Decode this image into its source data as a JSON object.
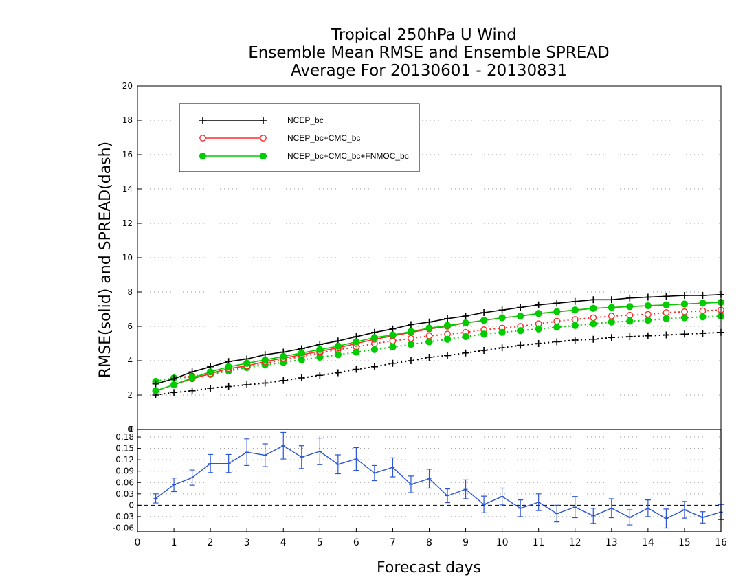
{
  "title": [
    "Tropical 250hPa U Wind",
    "Ensemble Mean RMSE and Ensemble SPREAD",
    "Average For 20130601 - 20130831"
  ],
  "xlabel": "Forecast days",
  "ylabel": "RMSE(solid) and SPREAD(dash)",
  "colors": {
    "ncep": "#000000",
    "cmc": "#ff2a2a",
    "fnmoc": "#00cc00",
    "diff": "#2b55d6",
    "grid": "#9a9a9a"
  },
  "chart_data": [
    {
      "type": "line",
      "xlim": [
        0,
        16
      ],
      "ylim": [
        0,
        20
      ],
      "xticks": [
        "0",
        "1",
        "2",
        "3",
        "4",
        "5",
        "6",
        "7",
        "8",
        "9",
        "10",
        "11",
        "12",
        "13",
        "14",
        "15",
        "16"
      ],
      "yticks": [
        "0",
        "2",
        "4",
        "6",
        "8",
        "10",
        "12",
        "14",
        "16",
        "18",
        "20"
      ],
      "grid": true,
      "legend_position": "top-left",
      "x": [
        0.5,
        1,
        1.5,
        2,
        2.5,
        3,
        3.5,
        4,
        4.5,
        5,
        5.5,
        6,
        6.5,
        7,
        7.5,
        8,
        8.5,
        9,
        9.5,
        10,
        10.5,
        11,
        11.5,
        12,
        12.5,
        13,
        13.5,
        14,
        14.5,
        15,
        15.5,
        16
      ],
      "series": [
        {
          "name": "NCEP_bc",
          "metric": "RMSE",
          "line_style": "solid",
          "marker": "plus",
          "values": [
            2.65,
            2.95,
            3.35,
            3.65,
            3.95,
            4.1,
            4.35,
            4.5,
            4.7,
            4.95,
            5.15,
            5.4,
            5.65,
            5.85,
            6.1,
            6.25,
            6.45,
            6.6,
            6.8,
            6.95,
            7.1,
            7.25,
            7.35,
            7.45,
            7.55,
            7.55,
            7.65,
            7.7,
            7.75,
            7.8,
            7.8,
            7.85
          ]
        },
        {
          "name": "NCEP_bc",
          "metric": "SPREAD",
          "line_style": "dotted",
          "marker": "plus",
          "values": [
            2.0,
            2.15,
            2.25,
            2.4,
            2.5,
            2.6,
            2.7,
            2.85,
            3.0,
            3.15,
            3.3,
            3.5,
            3.65,
            3.85,
            4.0,
            4.2,
            4.3,
            4.45,
            4.6,
            4.75,
            4.9,
            5.0,
            5.1,
            5.2,
            5.25,
            5.35,
            5.4,
            5.45,
            5.5,
            5.55,
            5.6,
            5.65
          ]
        },
        {
          "name": "NCEP_bc+CMC_bc",
          "metric": "RMSE",
          "line_style": "solid",
          "marker": "open-circle",
          "values": [
            2.25,
            2.6,
            2.95,
            3.25,
            3.55,
            3.7,
            3.95,
            4.15,
            4.35,
            4.55,
            4.75,
            5.0,
            5.25,
            5.45,
            5.65,
            5.85,
            6.0,
            6.2,
            6.35,
            6.5,
            6.6,
            6.75,
            6.85,
            6.95,
            7.05,
            7.1,
            7.15,
            7.2,
            7.25,
            7.3,
            7.35,
            7.4
          ]
        },
        {
          "name": "NCEP_bc+CMC_bc",
          "metric": "SPREAD",
          "line_style": "dotted",
          "marker": "open-circle",
          "values": [
            2.8,
            3.0,
            3.1,
            3.25,
            3.45,
            3.65,
            3.85,
            4.05,
            4.25,
            4.45,
            4.65,
            4.8,
            5.0,
            5.15,
            5.3,
            5.45,
            5.55,
            5.65,
            5.8,
            5.9,
            6.0,
            6.15,
            6.3,
            6.4,
            6.5,
            6.6,
            6.65,
            6.7,
            6.8,
            6.85,
            6.9,
            6.95
          ]
        },
        {
          "name": "NCEP_bc+CMC_bc+FNMOC_bc",
          "metric": "RMSE",
          "line_style": "solid",
          "marker": "filled-circle",
          "values": [
            2.25,
            2.6,
            3.0,
            3.35,
            3.65,
            3.85,
            4.05,
            4.25,
            4.45,
            4.65,
            4.85,
            5.1,
            5.35,
            5.5,
            5.7,
            5.9,
            6.05,
            6.2,
            6.35,
            6.5,
            6.6,
            6.75,
            6.85,
            6.95,
            7.05,
            7.1,
            7.15,
            7.2,
            7.25,
            7.3,
            7.35,
            7.4
          ]
        },
        {
          "name": "NCEP_bc+CMC_bc+FNMOC_bc",
          "metric": "SPREAD",
          "line_style": "dotted",
          "marker": "filled-circle",
          "values": [
            2.8,
            3.0,
            3.05,
            3.2,
            3.4,
            3.6,
            3.75,
            3.9,
            4.05,
            4.2,
            4.35,
            4.5,
            4.65,
            4.8,
            4.95,
            5.1,
            5.25,
            5.4,
            5.55,
            5.65,
            5.75,
            5.85,
            5.95,
            6.05,
            6.15,
            6.25,
            6.3,
            6.35,
            6.45,
            6.5,
            6.55,
            6.6
          ]
        }
      ]
    },
    {
      "type": "line",
      "xlim": [
        0,
        16
      ],
      "ylim": [
        -0.07,
        0.2
      ],
      "xticks": [
        "0",
        "1",
        "2",
        "3",
        "4",
        "5",
        "6",
        "7",
        "8",
        "9",
        "10",
        "11",
        "12",
        "13",
        "14",
        "15",
        "16"
      ],
      "yticks": [
        "-0.06",
        "-0.03",
        "0",
        "0.03",
        "0.06",
        "0.09",
        "0.12",
        "0.15",
        "0.18"
      ],
      "ytick_values": [
        -0.06,
        -0.03,
        0,
        0.03,
        0.06,
        0.09,
        0.12,
        0.15,
        0.18
      ],
      "grid": true,
      "zero_line": "dashed",
      "x": [
        0.5,
        1,
        1.5,
        2,
        2.5,
        3,
        3.5,
        4,
        4.5,
        5,
        5.5,
        6,
        6.5,
        7,
        7.5,
        8,
        8.5,
        9,
        9.5,
        10,
        10.5,
        11,
        11.5,
        12,
        12.5,
        13,
        13.5,
        14,
        14.5,
        15,
        15.5,
        16
      ],
      "series": [
        {
          "marker": "error-bar",
          "values": [
            0.018,
            0.054,
            0.073,
            0.11,
            0.11,
            0.14,
            0.132,
            0.157,
            0.127,
            0.142,
            0.108,
            0.122,
            0.085,
            0.1,
            0.055,
            0.07,
            0.025,
            0.042,
            0.002,
            0.023,
            -0.008,
            0.008,
            -0.022,
            -0.005,
            -0.028,
            -0.008,
            -0.032,
            -0.008,
            -0.035,
            -0.012,
            -0.032,
            -0.018
          ],
          "error": [
            0.012,
            0.018,
            0.02,
            0.024,
            0.024,
            0.035,
            0.03,
            0.035,
            0.03,
            0.035,
            0.025,
            0.03,
            0.02,
            0.025,
            0.022,
            0.025,
            0.018,
            0.025,
            0.022,
            0.022,
            0.022,
            0.022,
            0.022,
            0.028,
            0.02,
            0.025,
            0.02,
            0.022,
            0.025,
            0.022,
            0.015,
            0.02
          ]
        }
      ]
    }
  ]
}
